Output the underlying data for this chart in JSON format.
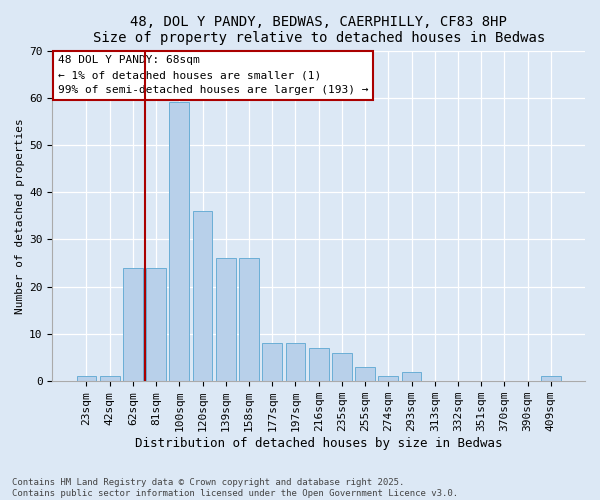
{
  "title_line1": "48, DOL Y PANDY, BEDWAS, CAERPHILLY, CF83 8HP",
  "title_line2": "Size of property relative to detached houses in Bedwas",
  "xlabel": "Distribution of detached houses by size in Bedwas",
  "ylabel": "Number of detached properties",
  "categories": [
    "23sqm",
    "42sqm",
    "62sqm",
    "81sqm",
    "100sqm",
    "120sqm",
    "139sqm",
    "158sqm",
    "177sqm",
    "197sqm",
    "216sqm",
    "235sqm",
    "255sqm",
    "274sqm",
    "293sqm",
    "313sqm",
    "332sqm",
    "351sqm",
    "370sqm",
    "390sqm",
    "409sqm"
  ],
  "values": [
    1,
    1,
    24,
    24,
    59,
    36,
    26,
    26,
    8,
    8,
    7,
    6,
    3,
    1,
    2,
    0,
    0,
    0,
    0,
    0,
    1
  ],
  "bar_color": "#b8d0ea",
  "bar_edge_color": "#6baed6",
  "ylim": [
    0,
    70
  ],
  "yticks": [
    0,
    10,
    20,
    30,
    40,
    50,
    60,
    70
  ],
  "vline_color": "#aa0000",
  "vline_x": 2.5,
  "annotation_text": "48 DOL Y PANDY: 68sqm\n← 1% of detached houses are smaller (1)\n99% of semi-detached houses are larger (193) →",
  "footer_text": "Contains HM Land Registry data © Crown copyright and database right 2025.\nContains public sector information licensed under the Open Government Licence v3.0.",
  "bg_color": "#dce8f5",
  "font": "monospace",
  "title_fontsize": 10,
  "xlabel_fontsize": 9,
  "ylabel_fontsize": 8,
  "tick_fontsize": 8,
  "annot_fontsize": 8,
  "footer_fontsize": 6.5
}
